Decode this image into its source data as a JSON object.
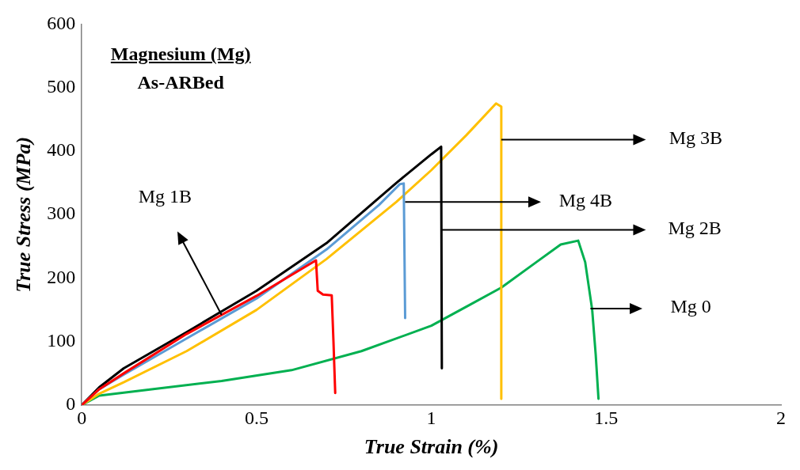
{
  "chart_data": {
    "type": "line",
    "title": "Magnesium (Mg)",
    "subtitle": "As-ARBed",
    "xlabel": "True Strain (%)",
    "ylabel": "True Stress (MPa)",
    "xlim": [
      0,
      2
    ],
    "xticks": [
      0,
      0.5,
      1,
      1.5,
      2
    ],
    "ylim": [
      0,
      600
    ],
    "yticks": [
      0,
      100,
      200,
      300,
      400,
      500,
      600
    ],
    "grid": false,
    "legend": false,
    "marker": "none",
    "line_style": "solid",
    "annotations": [
      "Mg 1B",
      {
        "text": "Mg 4B",
        "x": 0.925,
        "y": 320
      },
      "Mg 2B",
      "Mg 3B",
      "Mg 0"
    ],
    "series": [
      {
        "color": "#ff0000",
        "x": [
          0,
          0.05,
          0.12,
          0.3,
          0.5,
          0.6,
          0.67,
          0.675,
          0.69,
          0.715,
          0.72,
          0.725
        ],
        "values": [
          0,
          25,
          50,
          112,
          172,
          205,
          228,
          180,
          174,
          173,
          100,
          19
        ]
      },
      {
        "color": "#5b9bd5",
        "x": [
          0,
          0.05,
          0.12,
          0.3,
          0.5,
          0.7,
          0.85,
          0.91,
          0.921,
          0.925
        ],
        "values": [
          0,
          25,
          48,
          105,
          168,
          245,
          315,
          348,
          349,
          137
        ]
      },
      {
        "color": "#000000",
        "x": [
          0,
          0.05,
          0.12,
          0.3,
          0.5,
          0.7,
          0.9,
          1.0,
          1.028,
          1.03
        ],
        "values": [
          0,
          28,
          58,
          115,
          180,
          255,
          350,
          395,
          407,
          58
        ]
      },
      {
        "color": "#ffc000",
        "x": [
          0,
          0.05,
          0.12,
          0.3,
          0.5,
          0.7,
          0.9,
          1.0,
          1.1,
          1.185,
          1.2,
          1.2
        ],
        "values": [
          0,
          18,
          36,
          85,
          150,
          230,
          320,
          370,
          425,
          475,
          470,
          10
        ]
      },
      {
        "color": "#00b050",
        "x": [
          0,
          0.05,
          0.2,
          0.4,
          0.6,
          0.8,
          1.0,
          1.1,
          1.2,
          1.3,
          1.37,
          1.42,
          1.44,
          1.46,
          1.47,
          1.478
        ],
        "values": [
          0,
          15,
          25,
          38,
          55,
          85,
          125,
          155,
          185,
          225,
          253,
          259,
          225,
          150,
          80,
          10
        ]
      }
    ]
  }
}
